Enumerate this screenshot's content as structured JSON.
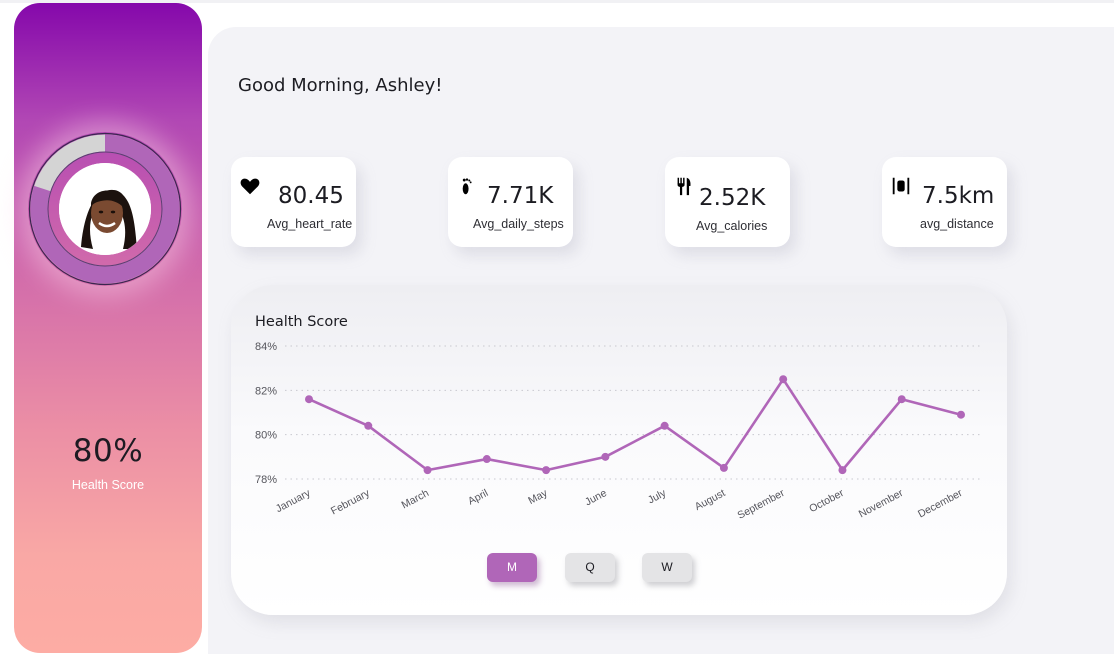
{
  "sidebar": {
    "health_score_value": "80%",
    "health_score_label": "Health Score",
    "profile_progress": 0.8
  },
  "header": {
    "greeting": "Good Morning, Ashley!"
  },
  "kpis": [
    {
      "icon": "heart-icon",
      "value": "80.45",
      "label": "Avg_heart_rate"
    },
    {
      "icon": "footprint-icon",
      "value": "7.71K",
      "label": "Avg_daily_steps"
    },
    {
      "icon": "fork-knife-icon",
      "value": "2.52K",
      "label": "Avg_calories"
    },
    {
      "icon": "distance-icon",
      "value": "7.5km",
      "label": "avg_distance"
    }
  ],
  "chart": {
    "title": "Health Score",
    "buttons": [
      {
        "label": "M",
        "active": true
      },
      {
        "label": "Q",
        "active": false
      },
      {
        "label": "W",
        "active": false
      }
    ]
  },
  "chart_data": {
    "type": "line",
    "title": "Health Score",
    "categories": [
      "January",
      "February",
      "March",
      "April",
      "May",
      "June",
      "July",
      "August",
      "September",
      "October",
      "November",
      "December"
    ],
    "values": [
      81.6,
      80.4,
      78.4,
      78.9,
      78.4,
      79.0,
      80.4,
      78.5,
      82.5,
      78.4,
      81.6,
      80.9
    ],
    "ylim": [
      78,
      84
    ],
    "yticks": [
      78,
      80,
      82,
      84
    ],
    "ytick_labels": [
      "78%",
      "80%",
      "82%",
      "84%"
    ],
    "grid": true,
    "color": "#b066b8"
  },
  "colors": {
    "accent": "#b066b8",
    "gradient_top": "#8508ab",
    "gradient_bottom": "#fdaca4"
  }
}
